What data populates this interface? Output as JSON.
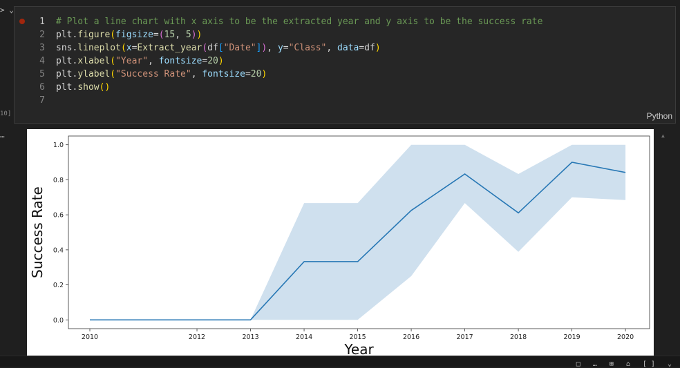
{
  "chevron": "> ⌄",
  "exec_count": "10]",
  "output_dots": "…",
  "language": "Python",
  "code_lines": [
    {
      "num": "1",
      "tokens": [
        {
          "t": "# Plot a line chart with x axis to be the extracted year and y axis to be the success rate",
          "c": "cm"
        }
      ]
    },
    {
      "num": "2",
      "tokens": [
        {
          "t": "plt.",
          "c": "df"
        },
        {
          "t": "figure",
          "c": "fn"
        },
        {
          "t": "(",
          "c": "p1"
        },
        {
          "t": "figsize",
          "c": "vr"
        },
        {
          "t": "=",
          "c": "df"
        },
        {
          "t": "(",
          "c": "p2"
        },
        {
          "t": "15",
          "c": "nm"
        },
        {
          "t": ", ",
          "c": "df"
        },
        {
          "t": "5",
          "c": "nm"
        },
        {
          "t": ")",
          "c": "p2"
        },
        {
          "t": ")",
          "c": "p1"
        }
      ]
    },
    {
      "num": "3",
      "tokens": [
        {
          "t": "sns.",
          "c": "df"
        },
        {
          "t": "lineplot",
          "c": "fn"
        },
        {
          "t": "(",
          "c": "p1"
        },
        {
          "t": "x",
          "c": "vr"
        },
        {
          "t": "=",
          "c": "df"
        },
        {
          "t": "Extract_year",
          "c": "fn"
        },
        {
          "t": "(",
          "c": "p2"
        },
        {
          "t": "df",
          "c": "df"
        },
        {
          "t": "[",
          "c": "p3"
        },
        {
          "t": "\"Date\"",
          "c": "st"
        },
        {
          "t": "]",
          "c": "p3"
        },
        {
          "t": ")",
          "c": "p2"
        },
        {
          "t": ", ",
          "c": "df"
        },
        {
          "t": "y",
          "c": "vr"
        },
        {
          "t": "=",
          "c": "df"
        },
        {
          "t": "\"Class\"",
          "c": "st"
        },
        {
          "t": ", ",
          "c": "df"
        },
        {
          "t": "data",
          "c": "vr"
        },
        {
          "t": "=df",
          "c": "df"
        },
        {
          "t": ")",
          "c": "p1"
        }
      ]
    },
    {
      "num": "4",
      "tokens": [
        {
          "t": "plt.",
          "c": "df"
        },
        {
          "t": "xlabel",
          "c": "fn"
        },
        {
          "t": "(",
          "c": "p1"
        },
        {
          "t": "\"Year\"",
          "c": "st"
        },
        {
          "t": ", ",
          "c": "df"
        },
        {
          "t": "fontsize",
          "c": "vr"
        },
        {
          "t": "=",
          "c": "df"
        },
        {
          "t": "20",
          "c": "nm"
        },
        {
          "t": ")",
          "c": "p1"
        }
      ]
    },
    {
      "num": "5",
      "tokens": [
        {
          "t": "plt.",
          "c": "df"
        },
        {
          "t": "ylabel",
          "c": "fn"
        },
        {
          "t": "(",
          "c": "p1"
        },
        {
          "t": "\"Success Rate\"",
          "c": "st"
        },
        {
          "t": ", ",
          "c": "df"
        },
        {
          "t": "fontsize",
          "c": "vr"
        },
        {
          "t": "=",
          "c": "df"
        },
        {
          "t": "20",
          "c": "nm"
        },
        {
          "t": ")",
          "c": "p1"
        }
      ]
    },
    {
      "num": "6",
      "tokens": [
        {
          "t": "plt.",
          "c": "df"
        },
        {
          "t": "show",
          "c": "fn"
        },
        {
          "t": "()",
          "c": "p1"
        }
      ]
    },
    {
      "num": "7",
      "tokens": []
    }
  ],
  "status_icons": "□ … ⊞ ⌂ [] ⌄",
  "chart_data": {
    "type": "line",
    "title": "",
    "xlabel": "Year",
    "ylabel": "Success Rate",
    "xlim": [
      2009.6,
      2020.45
    ],
    "ylim": [
      -0.05,
      1.05
    ],
    "x_ticks": [
      "2010",
      "2012",
      "2013",
      "2014",
      "2015",
      "2016",
      "2017",
      "2018",
      "2019",
      "2020"
    ],
    "y_ticks": [
      "0.0",
      "0.2",
      "0.4",
      "0.6",
      "0.8",
      "1.0"
    ],
    "grid": false,
    "line_color": "#2878b5",
    "band_color": "#cfe0ee",
    "series": [
      {
        "x": [
          2010,
          2012,
          2013,
          2014,
          2015,
          2016,
          2017,
          2018,
          2019,
          2020
        ],
        "values": [
          0.0,
          0.0,
          0.0,
          0.333,
          0.333,
          0.625,
          0.833,
          0.611,
          0.9,
          0.842
        ],
        "ci_lower": [
          0.0,
          0.0,
          0.0,
          0.0,
          0.0,
          0.25,
          0.667,
          0.389,
          0.7,
          0.684
        ],
        "ci_upper": [
          0.0,
          0.0,
          0.0,
          0.667,
          0.667,
          1.0,
          1.0,
          0.833,
          1.0,
          1.0
        ]
      }
    ]
  }
}
